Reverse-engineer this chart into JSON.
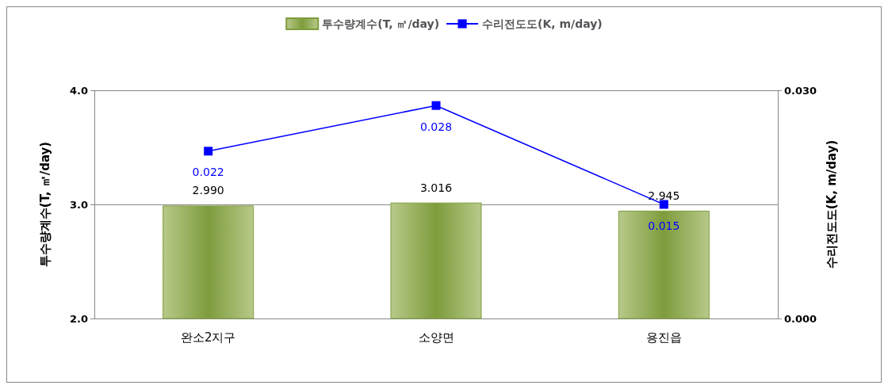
{
  "chart_data": {
    "type": "bar",
    "categories": [
      "완소2지구",
      "소양면",
      "용진읍"
    ],
    "series": [
      {
        "name": "투수량계수(T, ㎡/day)",
        "color": "#7e9c3c",
        "values": [
          2.99,
          3.016,
          2.945
        ],
        "value_labels": [
          "2.990",
          "3.016",
          "2.945"
        ]
      },
      {
        "name": "수리전도도(K, m/day)",
        "type": "line",
        "axis": "y2",
        "color": "#0000ff",
        "values": [
          0.022,
          0.028,
          0.015
        ],
        "value_labels": [
          "0.022",
          "0.028",
          "0.015"
        ]
      }
    ],
    "ylabel": "투수량계수(T, ㎡/day)",
    "y2label": "수리전도도(K, m/day)",
    "ylim": [
      2,
      4
    ],
    "yticks": [
      {
        "value": 2,
        "label": "2.0"
      },
      {
        "value": 3,
        "label": "3.0"
      },
      {
        "value": 4,
        "label": "4.0"
      }
    ],
    "y2lim": [
      0,
      0.03
    ],
    "y2ticks": [
      {
        "value": 0,
        "label": "0.000"
      },
      {
        "value": 0.03,
        "label": "0.030"
      }
    ],
    "grid": "y",
    "legend": "top",
    "marker": "square",
    "line_style": "solid"
  }
}
